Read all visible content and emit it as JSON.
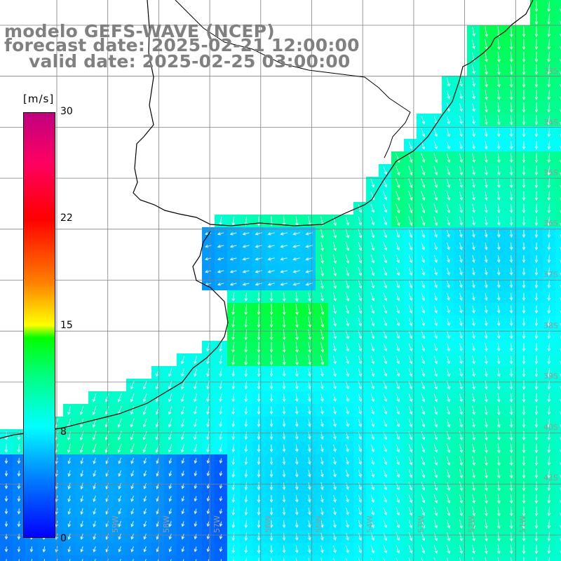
{
  "title": {
    "line1": "modelo GEFS-WAVE (NCEP)",
    "line2": "forecast date: 2025-02-21 12:00:00",
    "line3": "valid date: 2025-02-25 03:00:00"
  },
  "colorbar": {
    "unit": "[m/s]",
    "ticks": [
      "30",
      "22",
      "15",
      "8",
      "0"
    ],
    "tick_values": [
      30,
      22,
      15,
      8,
      0
    ]
  },
  "lat_labels": [
    "33S",
    "34S",
    "35S",
    "36S",
    "37S",
    "38S",
    "39S",
    "40S",
    "41S"
  ],
  "lon_labels": [
    "59W",
    "58W",
    "57W",
    "56W",
    "55W",
    "54W",
    "53W",
    "52W",
    "51W"
  ],
  "colors": {
    "land": "#ffffff",
    "grid": "#808080",
    "coast": "#000000",
    "arrows": "#ffffff",
    "title": "#808080"
  }
}
